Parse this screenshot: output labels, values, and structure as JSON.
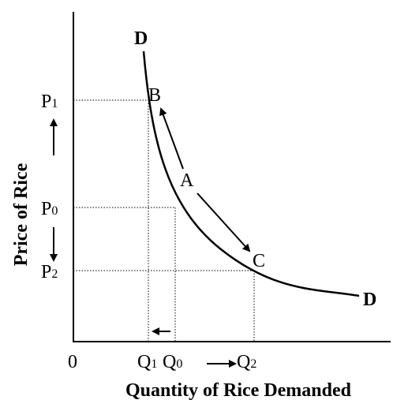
{
  "diagram": {
    "axis_labels": {
      "x": "Quantity of Rice Demanded",
      "y": "Price of Rice"
    },
    "origin": "0",
    "curve_labels": [
      "D",
      "D"
    ],
    "points": {
      "b": "B",
      "a": "A",
      "c": "C"
    },
    "prices": [
      {
        "main": "P",
        "sub": "1"
      },
      {
        "main": "P",
        "sub": "0"
      },
      {
        "main": "P",
        "sub": "2"
      }
    ],
    "quantities": [
      {
        "main": "Q",
        "sub": "1"
      },
      {
        "main": "Q",
        "sub": "0"
      },
      {
        "main": "Q",
        "sub": "2"
      }
    ]
  }
}
